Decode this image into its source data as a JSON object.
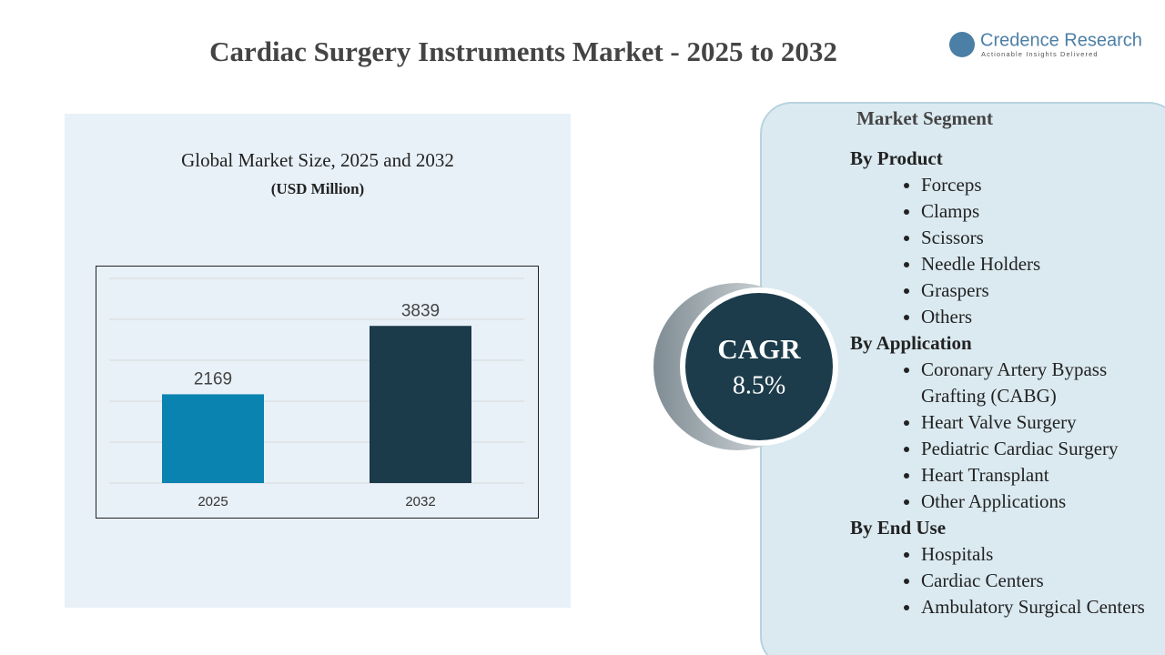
{
  "header": {
    "title": "Cardiac Surgery Instruments Market - 2025 to 2032",
    "logo": {
      "name": "Credence Research",
      "tagline": "Actionable Insights Delivered"
    }
  },
  "chart_data": {
    "type": "bar",
    "title": "Global Market Size, 2025 and 2032",
    "subtitle": "(USD Million)",
    "categories": [
      "2025",
      "2032"
    ],
    "values": [
      2169,
      3839
    ],
    "colors": [
      "#0b83b1",
      "#1b3a4a"
    ],
    "ylim": [
      0,
      5000
    ],
    "yticks": [
      0,
      1000,
      2000,
      3000,
      4000,
      5000
    ],
    "grid": true
  },
  "cagr": {
    "label": "CAGR",
    "value": "8.5%"
  },
  "segments": {
    "title": "Market Segment",
    "groups": [
      {
        "name": "By Product",
        "items": [
          "Forceps",
          "Clamps",
          "Scissors",
          "Needle Holders",
          "Graspers",
          "Others"
        ]
      },
      {
        "name": "By Application",
        "items": [
          "Coronary Artery Bypass Grafting (CABG)",
          "Heart Valve Surgery",
          "Pediatric Cardiac Surgery",
          "Heart Transplant",
          "Other Applications"
        ]
      },
      {
        "name": "By End Use",
        "items": [
          "Hospitals",
          "Cardiac Centers",
          "Ambulatory Surgical Centers"
        ]
      }
    ]
  }
}
